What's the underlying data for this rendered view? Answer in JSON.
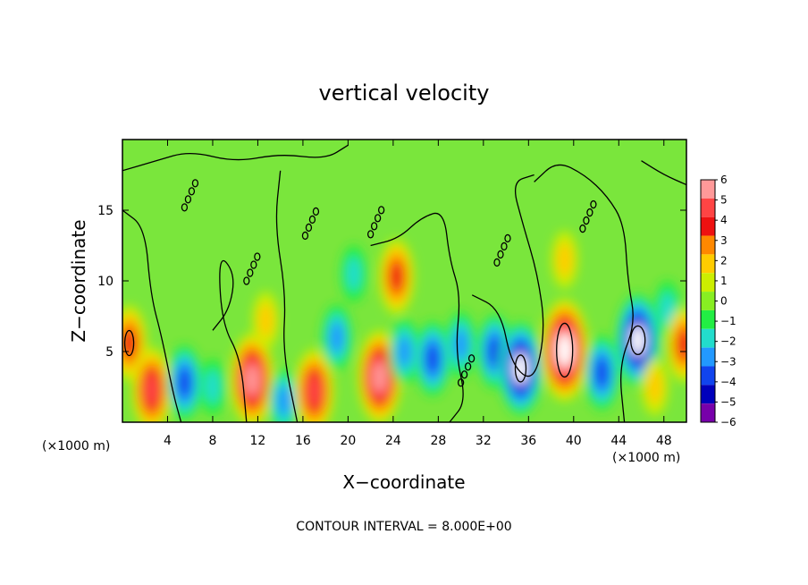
{
  "chart_data": {
    "type": "heatmap",
    "title": "vertical velocity",
    "xlabel": "X−coordinate",
    "ylabel": "Z−coordinate",
    "x_unit_left": "(×1000 m)",
    "x_unit_right": "(×1000 m)",
    "xlim": [
      0,
      50
    ],
    "ylim": [
      0,
      20
    ],
    "x_ticks": [
      4,
      8,
      12,
      16,
      20,
      24,
      28,
      32,
      36,
      40,
      44,
      48
    ],
    "x_tick_labels": [
      "4",
      "8",
      "12",
      "16",
      "20",
      "24",
      "28",
      "32",
      "36",
      "40",
      "44",
      "48"
    ],
    "y_ticks": [
      5,
      10,
      15
    ],
    "y_tick_labels": [
      "5",
      "10",
      "15"
    ],
    "contour_note": "CONTOUR INTERVAL = 8.000E+00",
    "colorbar": {
      "min": -6,
      "max": 6,
      "labels": [
        "6",
        "5",
        "4",
        "3",
        "2",
        "1",
        "0",
        "−1",
        "−2",
        "−3",
        "−4",
        "−5",
        "−6"
      ],
      "colors": [
        "#ff9999",
        "#ff4444",
        "#ee1111",
        "#ff8800",
        "#ffcc00",
        "#ccee00",
        "#88ee22",
        "#22ee44",
        "#22ddcc",
        "#2299ff",
        "#1144ee",
        "#0000bb",
        "#7700aa"
      ]
    },
    "features": [
      {
        "x": 0.6,
        "z": 5.6,
        "w": 4.0
      },
      {
        "x": 2.6,
        "z": 2.3,
        "w": 4.5
      },
      {
        "x": 5.5,
        "z": 2.8,
        "w": -3.5
      },
      {
        "x": 8.0,
        "z": 2.5,
        "w": -2.0
      },
      {
        "x": 11.5,
        "z": 3.0,
        "w": 5.5
      },
      {
        "x": 12.7,
        "z": 7.2,
        "w": 1.5
      },
      {
        "x": 14.3,
        "z": 1.5,
        "w": -2.5
      },
      {
        "x": 17.0,
        "z": 2.2,
        "w": 4.5
      },
      {
        "x": 19.0,
        "z": 6.0,
        "w": -2.5
      },
      {
        "x": 20.5,
        "z": 10.5,
        "w": -1.5
      },
      {
        "x": 22.8,
        "z": 3.2,
        "w": 5.5
      },
      {
        "x": 24.3,
        "z": 10.3,
        "w": 3.5
      },
      {
        "x": 25.0,
        "z": 5.0,
        "w": -2.5
      },
      {
        "x": 27.5,
        "z": 4.5,
        "w": -3.5
      },
      {
        "x": 30.0,
        "z": 5.5,
        "w": -3.0
      },
      {
        "x": 33.0,
        "z": 5.0,
        "w": -3.5
      },
      {
        "x": 35.3,
        "z": 3.8,
        "w": -6.0
      },
      {
        "x": 39.2,
        "z": 5.1,
        "w": 7.0
      },
      {
        "x": 39.2,
        "z": 11.5,
        "w": 1.5
      },
      {
        "x": 42.5,
        "z": 3.5,
        "w": -3.5
      },
      {
        "x": 45.7,
        "z": 5.8,
        "w": -6.0
      },
      {
        "x": 47.2,
        "z": 2.5,
        "w": 2.0
      },
      {
        "x": 48.3,
        "z": 8.0,
        "w": -2.0
      },
      {
        "x": 49.8,
        "z": 5.5,
        "w": 4.0
      }
    ]
  }
}
